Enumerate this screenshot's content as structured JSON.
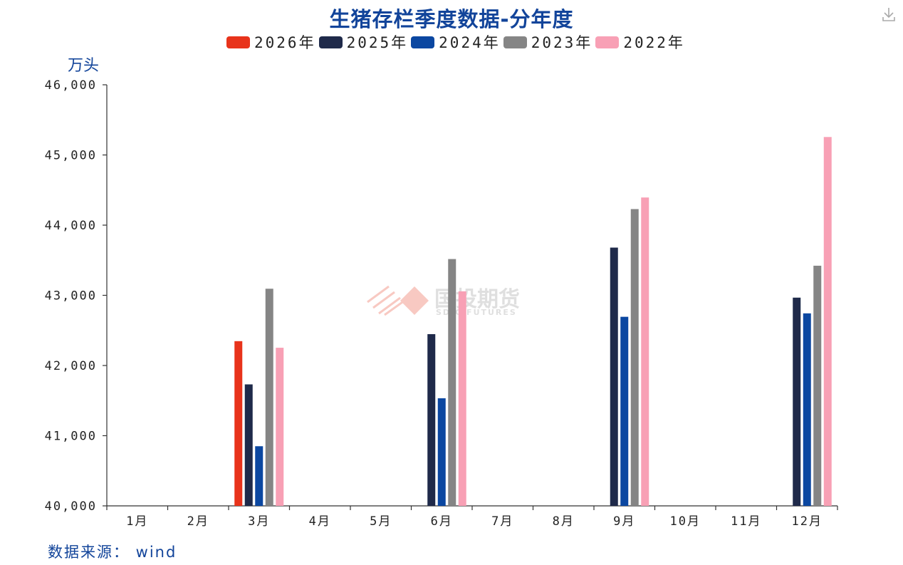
{
  "header": {
    "title": "生猪存栏季度数据-分年度",
    "unit": "万头",
    "source": "数据来源： wind"
  },
  "watermark": {
    "text": "国投期货",
    "subtext": "SDIC FUTURES"
  },
  "icons": {
    "download": "download-icon"
  },
  "colors": {
    "2026年": "#e8331b",
    "2025年": "#1f2a4a",
    "2024年": "#0b47a1",
    "2023年": "#858585",
    "2022年": "#f8a0b5",
    "title": "#12449a"
  },
  "chart_data": {
    "type": "bar",
    "title": "生猪存栏季度数据-分年度",
    "ylabel": "万头",
    "xlabel": "",
    "ylim": [
      40000,
      46000
    ],
    "yticks": [
      "40,000",
      "41,000",
      "42,000",
      "43,000",
      "44,000",
      "45,000",
      "46,000"
    ],
    "categories": [
      "1月",
      "2月",
      "3月",
      "4月",
      "5月",
      "6月",
      "7月",
      "8月",
      "9月",
      "10月",
      "11月",
      "12月"
    ],
    "legend_position": "top-center",
    "grid": false,
    "series": [
      {
        "name": "2026年",
        "color": "#e8331b",
        "values": [
          null,
          null,
          42347,
          null,
          null,
          null,
          null,
          null,
          null,
          null,
          null,
          null
        ]
      },
      {
        "name": "2025年",
        "color": "#1f2a4a",
        "values": [
          null,
          null,
          41731,
          null,
          null,
          42447,
          null,
          null,
          43680,
          null,
          null,
          42967
        ]
      },
      {
        "name": "2024年",
        "color": "#0b47a1",
        "values": [
          null,
          null,
          40850,
          null,
          null,
          41533,
          null,
          null,
          42694,
          null,
          null,
          42743
        ]
      },
      {
        "name": "2023年",
        "color": "#858585",
        "values": [
          null,
          null,
          43094,
          null,
          null,
          43517,
          null,
          null,
          44229,
          null,
          null,
          43422
        ]
      },
      {
        "name": "2022年",
        "color": "#f8a0b5",
        "values": [
          null,
          null,
          42253,
          null,
          null,
          43057,
          null,
          null,
          44394,
          null,
          null,
          45256
        ]
      }
    ]
  }
}
